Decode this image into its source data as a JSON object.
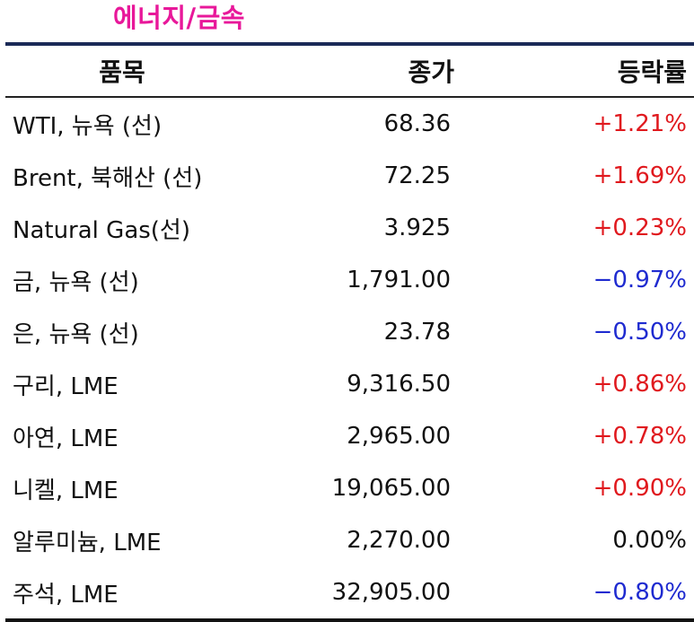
{
  "title": "에너지/금속",
  "columns": {
    "name": "품목",
    "price": "종가",
    "change": "등락률"
  },
  "rows": [
    {
      "name": "WTI, 뉴욕 (선)",
      "price": "68.36",
      "change": "+1.21%",
      "direction": "up"
    },
    {
      "name": "Brent, 북해산 (선)",
      "price": "72.25",
      "change": "+1.69%",
      "direction": "up"
    },
    {
      "name": "Natural Gas(선)",
      "price": "3.925",
      "change": "+0.23%",
      "direction": "up"
    },
    {
      "name": "금, 뉴욕  (선)",
      "price": "1,791.00",
      "change": "−0.97%",
      "direction": "down"
    },
    {
      "name": "은, 뉴욕  (선)",
      "price": "23.78",
      "change": "−0.50%",
      "direction": "down"
    },
    {
      "name": "구리, LME",
      "price": "9,316.50",
      "change": "+0.86%",
      "direction": "up"
    },
    {
      "name": "아연, LME",
      "price": "2,965.00",
      "change": "+0.78%",
      "direction": "up"
    },
    {
      "name": "니켈, LME",
      "price": "19,065.00",
      "change": "+0.90%",
      "direction": "up"
    },
    {
      "name": "알루미늄, LME",
      "price": "2,270.00",
      "change": "0.00%",
      "direction": "flat"
    },
    {
      "name": "주석, LME",
      "price": "32,905.00",
      "change": "−0.80%",
      "direction": "down"
    }
  ],
  "colors": {
    "title": "#e8189a",
    "up": "#e0191e",
    "down": "#1f2bd0",
    "top_rule": "#1b2a57"
  }
}
